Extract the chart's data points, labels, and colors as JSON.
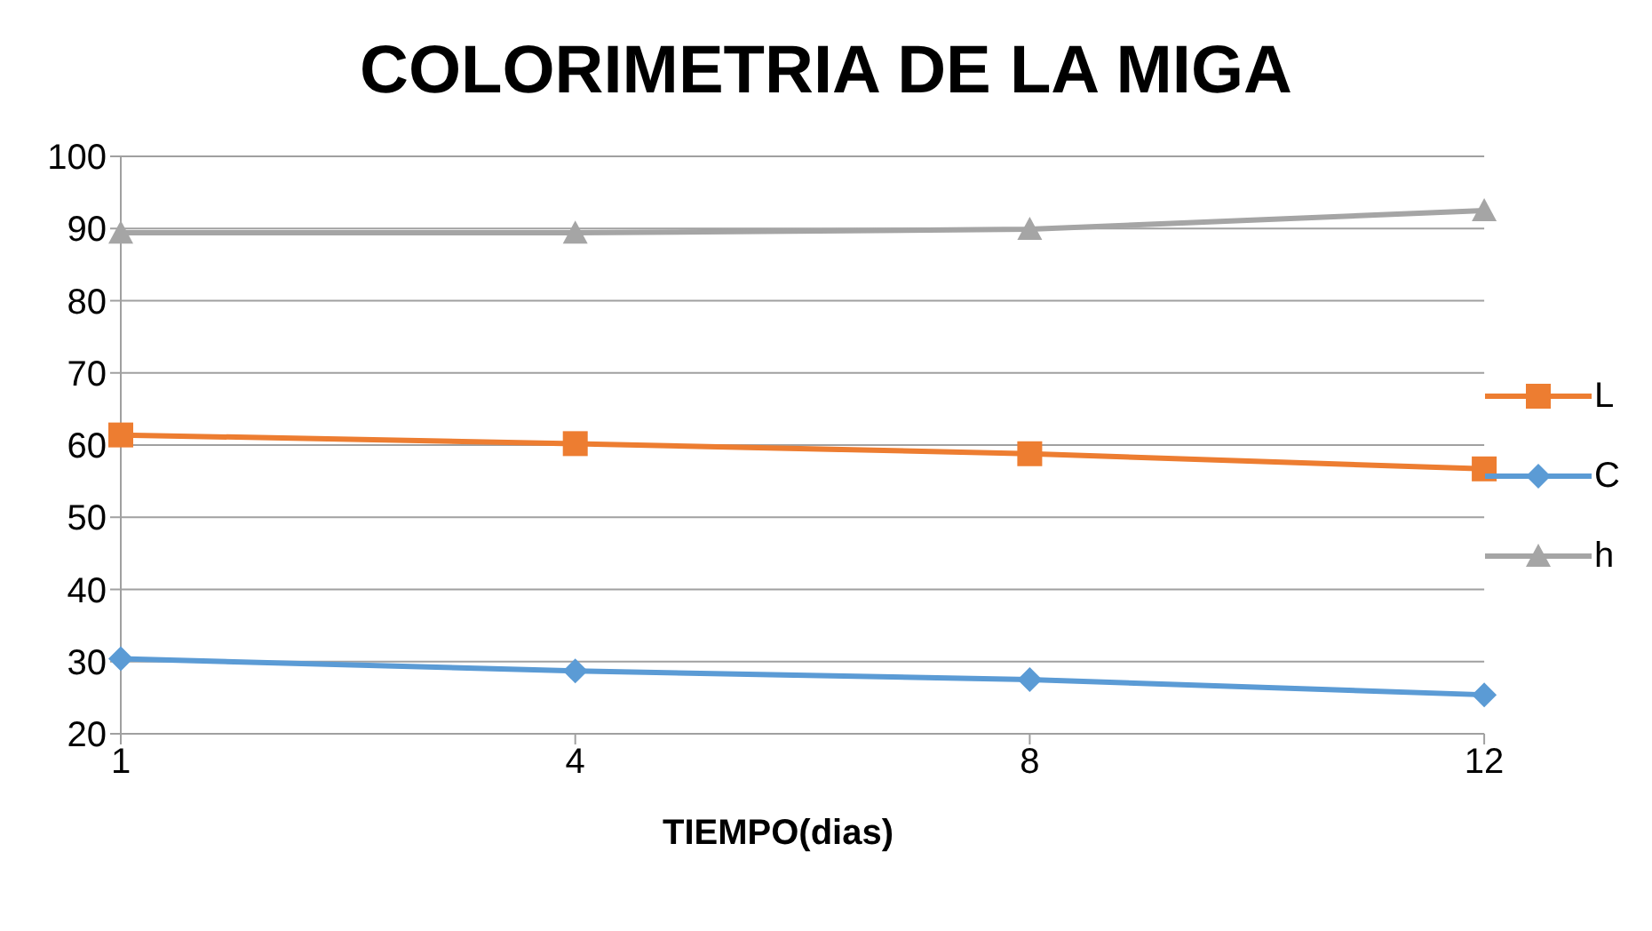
{
  "chart_data": {
    "type": "line",
    "title": "COLORIMETRIA DE LA MIGA",
    "xlabel": "TIEMPO(dias)",
    "categories": [
      "1",
      "4",
      "8",
      "12"
    ],
    "series": [
      {
        "name": "L",
        "color": "#ed7d31",
        "marker": "square",
        "values": [
          61.4,
          60.2,
          58.8,
          56.7
        ]
      },
      {
        "name": "C",
        "color": "#5b9bd5",
        "marker": "diamond",
        "values": [
          30.4,
          28.7,
          27.5,
          25.4
        ]
      },
      {
        "name": "h",
        "color": "#a5a5a5",
        "marker": "triangle",
        "values": [
          89.4,
          89.4,
          89.9,
          92.5
        ]
      }
    ],
    "ylim": [
      20,
      100
    ],
    "yticks": [
      20,
      30,
      40,
      50,
      60,
      70,
      80,
      90,
      100
    ],
    "grid": "y",
    "legend": "right"
  }
}
